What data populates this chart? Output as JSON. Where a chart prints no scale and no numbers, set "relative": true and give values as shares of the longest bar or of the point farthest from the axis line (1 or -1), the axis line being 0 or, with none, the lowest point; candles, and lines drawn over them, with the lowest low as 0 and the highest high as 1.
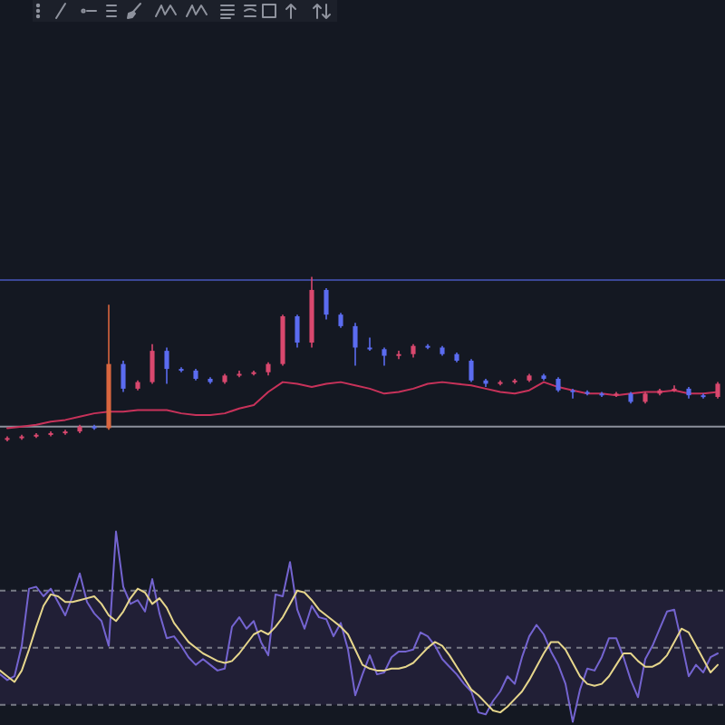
{
  "chart_data": [
    {
      "type": "candlestick",
      "relative": true,
      "categories": [
        null,
        null,
        null,
        null,
        null,
        null,
        null,
        null,
        null,
        null,
        null,
        null,
        null,
        null,
        null,
        null,
        null,
        null,
        null,
        null,
        null,
        null,
        null,
        null,
        null,
        null,
        null,
        null,
        null,
        null,
        null,
        null,
        null,
        null,
        null,
        null,
        null,
        null,
        null,
        null,
        null,
        null,
        null,
        null,
        null,
        null,
        null,
        null,
        null,
        null
      ],
      "ohlc": [
        [
          0.01,
          0.03,
          0,
          0.02
        ],
        [
          0.02,
          0.04,
          0.01,
          0.03
        ],
        [
          0.03,
          0.05,
          0.02,
          0.04
        ],
        [
          0.04,
          0.06,
          0.03,
          0.05
        ],
        [
          0.05,
          0.07,
          0.04,
          0.06
        ],
        [
          0.06,
          0.1,
          0.05,
          0.09
        ],
        [
          0.09,
          0.1,
          0.07,
          0.08
        ],
        [
          0.08,
          0.83,
          0.07,
          0.47
        ],
        [
          0.47,
          0.49,
          0.3,
          0.32
        ],
        [
          0.32,
          0.37,
          0.31,
          0.36
        ],
        [
          0.36,
          0.59,
          0.35,
          0.55
        ],
        [
          0.55,
          0.57,
          0.35,
          0.44
        ],
        [
          0.44,
          0.45,
          0.42,
          0.43
        ],
        [
          0.43,
          0.44,
          0.37,
          0.38
        ],
        [
          0.38,
          0.39,
          0.35,
          0.36
        ],
        [
          0.36,
          0.41,
          0.35,
          0.4
        ],
        [
          0.4,
          0.43,
          0.39,
          0.41
        ],
        [
          0.41,
          0.43,
          0.4,
          0.42
        ],
        [
          0.42,
          0.48,
          0.4,
          0.47
        ],
        [
          0.47,
          0.77,
          0.46,
          0.76
        ],
        [
          0.76,
          0.77,
          0.57,
          0.6
        ],
        [
          0.6,
          1,
          0.57,
          0.92
        ],
        [
          0.92,
          0.93,
          0.74,
          0.77
        ],
        [
          0.77,
          0.78,
          0.69,
          0.7
        ],
        [
          0.7,
          0.72,
          0.46,
          0.57
        ],
        [
          0.57,
          0.63,
          0.55,
          0.56
        ],
        [
          0.56,
          0.57,
          0.46,
          0.52
        ],
        [
          0.52,
          0.55,
          0.5,
          0.53
        ],
        [
          0.53,
          0.59,
          0.51,
          0.58
        ],
        [
          0.58,
          0.59,
          0.56,
          0.57
        ],
        [
          0.57,
          0.58,
          0.52,
          0.53
        ],
        [
          0.53,
          0.54,
          0.48,
          0.49
        ],
        [
          0.49,
          0.5,
          0.36,
          0.37
        ],
        [
          0.37,
          0.38,
          0.33,
          0.35
        ],
        [
          0.35,
          0.37,
          0.34,
          0.36
        ],
        [
          0.36,
          0.38,
          0.35,
          0.37
        ],
        [
          0.37,
          0.41,
          0.36,
          0.4
        ],
        [
          0.4,
          0.41,
          0.37,
          0.38
        ],
        [
          0.38,
          0.39,
          0.3,
          0.31
        ],
        [
          0.31,
          0.32,
          0.26,
          0.3
        ],
        [
          0.3,
          0.31,
          0.28,
          0.29
        ],
        [
          0.29,
          0.3,
          0.27,
          0.28
        ],
        [
          0.28,
          0.3,
          0.27,
          0.29
        ],
        [
          0.29,
          0.3,
          0.23,
          0.24
        ],
        [
          0.24,
          0.3,
          0.23,
          0.29
        ],
        [
          0.29,
          0.32,
          0.28,
          0.31
        ],
        [
          0.31,
          0.34,
          0.3,
          0.32
        ],
        [
          0.32,
          0.33,
          0.26,
          0.28
        ],
        [
          0.28,
          0.29,
          0.26,
          0.27
        ],
        [
          0.27,
          0.36,
          0.26,
          0.35
        ]
      ],
      "colors": [
        "#d9486e",
        "#d9486e",
        "#d9486e",
        "#d9486e",
        "#d9486e",
        "#d9486e",
        "#5b6cf0",
        "#d9663f",
        "#5b6cf0",
        "#d9486e",
        "#d9486e",
        "#5b6cf0",
        "#5b6cf0",
        "#5b6cf0",
        "#5b6cf0",
        "#d9486e",
        "#d9486e",
        "#d9486e",
        "#d9486e",
        "#d9486e",
        "#5b6cf0",
        "#d9486e",
        "#5b6cf0",
        "#5b6cf0",
        "#5b6cf0",
        "#5b6cf0",
        "#5b6cf0",
        "#d9486e",
        "#d9486e",
        "#5b6cf0",
        "#5b6cf0",
        "#5b6cf0",
        "#5b6cf0",
        "#5b6cf0",
        "#d9486e",
        "#d9486e",
        "#d9486e",
        "#5b6cf0",
        "#5b6cf0",
        "#5b6cf0",
        "#5b6cf0",
        "#5b6cf0",
        "#d9486e",
        "#5b6cf0",
        "#d9486e",
        "#d9486e",
        "#d9486e",
        "#5b6cf0",
        "#5b6cf0",
        "#d9486e"
      ],
      "series": [
        {
          "type": "line",
          "color": "#c8325a",
          "values": [
            0.08,
            0.09,
            0.1,
            0.12,
            0.13,
            0.15,
            0.17,
            0.18,
            0.18,
            0.19,
            0.19,
            0.19,
            0.17,
            0.16,
            0.16,
            0.17,
            0.2,
            0.22,
            0.3,
            0.36,
            0.35,
            0.33,
            0.35,
            0.36,
            0.34,
            0.32,
            0.29,
            0.3,
            0.32,
            0.35,
            0.36,
            0.35,
            0.34,
            0.32,
            0.3,
            0.29,
            0.31,
            0.36,
            0.33,
            0.31,
            0.29,
            0.29,
            0.28,
            0.29,
            0.3,
            0.3,
            0.31,
            0.29,
            0.29,
            0.3
          ]
        }
      ],
      "ref_lines": [
        {
          "axis": "y",
          "value": 0.98,
          "color": "#3b4796"
        },
        {
          "axis": "y",
          "value": 0.09,
          "color": "#8c909c"
        }
      ]
    },
    {
      "type": "line",
      "relative": true,
      "categories": [
        null,
        null,
        null,
        null,
        null,
        null,
        null,
        null,
        null,
        null,
        null,
        null,
        null,
        null,
        null,
        null,
        null,
        null,
        null,
        null,
        null,
        null,
        null,
        null,
        null,
        null,
        null,
        null,
        null,
        null,
        null,
        null,
        null,
        null,
        null,
        null,
        null,
        null,
        null,
        null,
        null,
        null,
        null,
        null,
        null,
        null,
        null,
        null,
        null,
        null,
        null,
        null,
        null,
        null,
        null,
        null,
        null,
        null,
        null,
        null,
        null,
        null,
        null,
        null,
        null,
        null,
        null,
        null,
        null,
        null,
        null,
        null,
        null,
        null,
        null,
        null,
        null,
        null,
        null,
        null,
        null,
        null,
        null,
        null,
        null,
        null,
        null,
        null,
        null,
        null,
        null,
        null,
        null,
        null,
        null,
        null,
        null,
        null,
        null,
        null
      ],
      "series": [
        {
          "color": "#7464d0",
          "values": [
            0.25,
            0.22,
            0.24,
            0.4,
            0.7,
            0.71,
            0.66,
            0.7,
            0.63,
            0.56,
            0.66,
            0.78,
            0.63,
            0.57,
            0.53,
            0.4,
            1,
            0.71,
            0.62,
            0.64,
            0.58,
            0.75,
            0.57,
            0.44,
            0.45,
            0.4,
            0.34,
            0.3,
            0.33,
            0.3,
            0.27,
            0.28,
            0.5,
            0.55,
            0.49,
            0.53,
            0.42,
            0.35,
            0.67,
            0.66,
            0.84,
            0.59,
            0.49,
            0.61,
            0.55,
            0.54,
            0.45,
            0.52,
            0.38,
            0.14,
            0.25,
            0.35,
            0.25,
            0.26,
            0.34,
            0.37,
            0.37,
            0.38,
            0.47,
            0.45,
            0.4,
            0.33,
            0.29,
            0.25,
            0.2,
            0.16,
            0.05,
            0.04,
            0.11,
            0.16,
            0.24,
            0.2,
            0.34,
            0.45,
            0.51,
            0.46,
            0.37,
            0.3,
            0.2,
            0,
            0.17,
            0.28,
            0.27,
            0.34,
            0.44,
            0.44,
            0.34,
            0.22,
            0.13,
            0.33,
            0.4,
            0.49,
            0.58,
            0.59,
            0.42,
            0.24,
            0.3,
            0.26,
            0.34,
            0.36
          ]
        },
        {
          "color": "#e6d68c",
          "values": [
            0.27,
            0.24,
            0.21,
            0.27,
            0.38,
            0.5,
            0.61,
            0.67,
            0.66,
            0.63,
            0.63,
            0.64,
            0.65,
            0.66,
            0.62,
            0.56,
            0.53,
            0.58,
            0.65,
            0.7,
            0.68,
            0.62,
            0.65,
            0.6,
            0.52,
            0.47,
            0.42,
            0.39,
            0.36,
            0.34,
            0.32,
            0.31,
            0.32,
            0.36,
            0.41,
            0.46,
            0.48,
            0.46,
            0.5,
            0.55,
            0.62,
            0.69,
            0.68,
            0.64,
            0.59,
            0.56,
            0.53,
            0.5,
            0.46,
            0.38,
            0.3,
            0.28,
            0.27,
            0.27,
            0.28,
            0.28,
            0.29,
            0.31,
            0.35,
            0.39,
            0.42,
            0.4,
            0.35,
            0.29,
            0.23,
            0.17,
            0.14,
            0.1,
            0.06,
            0.05,
            0.08,
            0.12,
            0.16,
            0.22,
            0.29,
            0.36,
            0.42,
            0.42,
            0.38,
            0.31,
            0.24,
            0.2,
            0.19,
            0.2,
            0.24,
            0.3,
            0.36,
            0.36,
            0.32,
            0.29,
            0.29,
            0.31,
            0.35,
            0.42,
            0.49,
            0.47,
            0.4,
            0.33,
            0.26,
            0.3
          ]
        }
      ],
      "bands": [
        {
          "axis": "y",
          "from": 0.09,
          "to": 0.69,
          "color": "#7e57c2"
        }
      ],
      "ref_lines": [
        {
          "axis": "y",
          "value": 0.69,
          "line_style": "dashed",
          "color": "#787b86"
        },
        {
          "axis": "y",
          "value": 0.39,
          "line_style": "dashed",
          "color": "#787b86"
        },
        {
          "axis": "y",
          "value": 0.09,
          "line_style": "dashed",
          "color": "#787b86"
        }
      ]
    }
  ]
}
